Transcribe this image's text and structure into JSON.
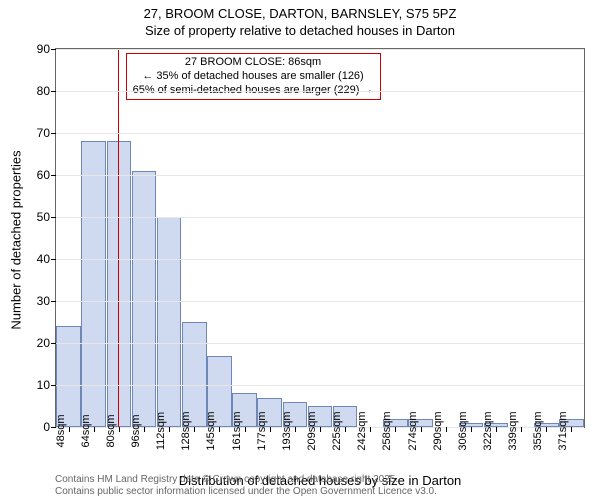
{
  "title": {
    "line1": "27, BROOM CLOSE, DARTON, BARNSLEY, S75 5PZ",
    "line2": "Size of property relative to detached houses in Darton",
    "fontsize": 13,
    "color": "#000000"
  },
  "chart": {
    "type": "histogram",
    "ylabel": "Number of detached properties",
    "xlabel": "Distribution of detached houses by size in Darton",
    "ylim": [
      0,
      90
    ],
    "ytick_step": 10,
    "background_color": "#ffffff",
    "grid_color": "#e7e7e7",
    "axis_color": "#666666",
    "bar_fill": "#cfd9ef",
    "bar_border": "#6f87b7",
    "bar_width": 0.98,
    "marker": {
      "x_category": "80sqm",
      "color": "#cc0000",
      "width": 1.5
    },
    "annotation": {
      "line1": "27 BROOM CLOSE: 86sqm",
      "line2": "← 35% of detached houses are smaller (126)",
      "line3": "65% of semi-detached houses are larger (229) →",
      "border_color": "#cc0000",
      "background": "#ffffff"
    },
    "categories": [
      "48sqm",
      "64sqm",
      "80sqm",
      "96sqm",
      "112sqm",
      "128sqm",
      "145sqm",
      "161sqm",
      "177sqm",
      "193sqm",
      "209sqm",
      "225sqm",
      "242sqm",
      "258sqm",
      "274sqm",
      "290sqm",
      "306sqm",
      "322sqm",
      "339sqm",
      "355sqm",
      "371sqm"
    ],
    "values": [
      24,
      68,
      68,
      61,
      50,
      25,
      17,
      8,
      7,
      6,
      5,
      5,
      0,
      2,
      2,
      0,
      1,
      1,
      0,
      1,
      2
    ]
  },
  "footer": {
    "line1": "Contains HM Land Registry data © Crown copyright and database right 2025.",
    "line2": "Contains public sector information licensed under the Open Government Licence v3.0.",
    "color": "#666666"
  }
}
